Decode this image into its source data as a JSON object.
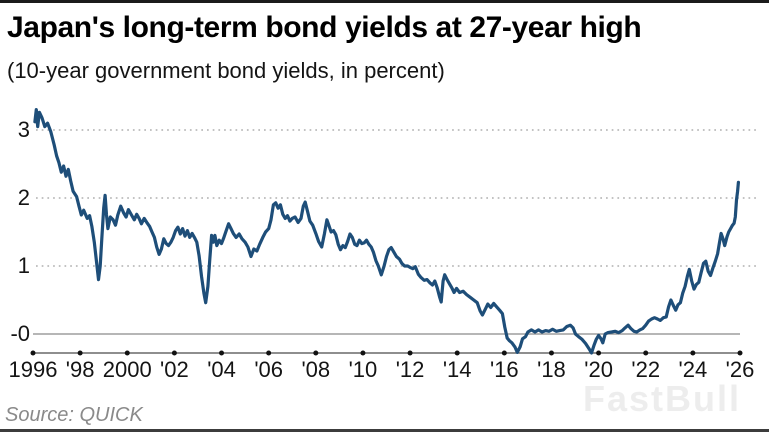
{
  "footer": {
    "source": "Source: QUICK",
    "watermark": "FastBull"
  },
  "chart_data": {
    "type": "line",
    "title": "Japan's long-term bond yields at 27-year high",
    "subtitle": "(10-year government bond yields, in percent)",
    "xlabel": "",
    "ylabel": "percent",
    "xlim": [
      1996,
      2026
    ],
    "ylim": [
      -0.35,
      3.45
    ],
    "grid": "horizontal dotted",
    "legend_position": "none",
    "colors": {
      "line": "#1e4e79",
      "grid": "#bbbbbb",
      "zero_line": "#8a8a8a",
      "axis": "#4a4a4a",
      "tick_dot": "#111111"
    },
    "y_ticks": [
      {
        "value": 3,
        "label": "3",
        "grid": true
      },
      {
        "value": 2,
        "label": "2",
        "grid": true
      },
      {
        "value": 1,
        "label": "1",
        "grid": true
      },
      {
        "value": 0,
        "label": "-0",
        "grid": false
      }
    ],
    "x_ticks": [
      {
        "year": 1996,
        "label": "1996"
      },
      {
        "year": 1998,
        "label": "'98"
      },
      {
        "year": 2000,
        "label": "2000"
      },
      {
        "year": 2002,
        "label": "'02"
      },
      {
        "year": 2004,
        "label": "'04"
      },
      {
        "year": 2006,
        "label": "'06"
      },
      {
        "year": 2008,
        "label": "'08"
      },
      {
        "year": 2010,
        "label": "'10"
      },
      {
        "year": 2012,
        "label": "'12"
      },
      {
        "year": 2014,
        "label": "'14"
      },
      {
        "year": 2016,
        "label": "'16"
      },
      {
        "year": 2018,
        "label": "'18"
      },
      {
        "year": 2020,
        "label": "'20"
      },
      {
        "year": 2022,
        "label": "'22"
      },
      {
        "year": 2024,
        "label": "'24"
      },
      {
        "year": 2026,
        "label": "'26"
      }
    ],
    "series": [
      {
        "name": "Japan 10-year government bond yield (%)",
        "points": [
          [
            1996.08,
            3.12
          ],
          [
            1996.14,
            3.3
          ],
          [
            1996.2,
            3.05
          ],
          [
            1996.27,
            3.26
          ],
          [
            1996.38,
            3.18
          ],
          [
            1996.5,
            3.05
          ],
          [
            1996.62,
            3.1
          ],
          [
            1996.75,
            2.98
          ],
          [
            1996.9,
            2.78
          ],
          [
            1997.0,
            2.62
          ],
          [
            1997.1,
            2.52
          ],
          [
            1997.2,
            2.38
          ],
          [
            1997.3,
            2.47
          ],
          [
            1997.4,
            2.32
          ],
          [
            1997.5,
            2.42
          ],
          [
            1997.6,
            2.25
          ],
          [
            1997.7,
            2.1
          ],
          [
            1997.85,
            2.02
          ],
          [
            1997.95,
            1.88
          ],
          [
            1998.05,
            1.75
          ],
          [
            1998.15,
            1.82
          ],
          [
            1998.3,
            1.7
          ],
          [
            1998.4,
            1.74
          ],
          [
            1998.5,
            1.58
          ],
          [
            1998.6,
            1.35
          ],
          [
            1998.7,
            1.05
          ],
          [
            1998.78,
            0.8
          ],
          [
            1998.85,
            1.0
          ],
          [
            1998.92,
            1.4
          ],
          [
            1999.0,
            1.85
          ],
          [
            1999.06,
            2.04
          ],
          [
            1999.12,
            1.75
          ],
          [
            1999.18,
            1.55
          ],
          [
            1999.28,
            1.72
          ],
          [
            1999.4,
            1.68
          ],
          [
            1999.5,
            1.6
          ],
          [
            1999.6,
            1.75
          ],
          [
            1999.72,
            1.88
          ],
          [
            1999.85,
            1.78
          ],
          [
            1999.95,
            1.72
          ],
          [
            2000.05,
            1.83
          ],
          [
            2000.18,
            1.75
          ],
          [
            2000.3,
            1.68
          ],
          [
            2000.4,
            1.76
          ],
          [
            2000.5,
            1.7
          ],
          [
            2000.6,
            1.62
          ],
          [
            2000.72,
            1.7
          ],
          [
            2000.85,
            1.63
          ],
          [
            2000.95,
            1.58
          ],
          [
            2001.05,
            1.5
          ],
          [
            2001.15,
            1.42
          ],
          [
            2001.25,
            1.28
          ],
          [
            2001.35,
            1.17
          ],
          [
            2001.45,
            1.25
          ],
          [
            2001.55,
            1.4
          ],
          [
            2001.65,
            1.33
          ],
          [
            2001.75,
            1.3
          ],
          [
            2001.85,
            1.35
          ],
          [
            2001.95,
            1.42
          ],
          [
            2002.05,
            1.52
          ],
          [
            2002.15,
            1.57
          ],
          [
            2002.25,
            1.47
          ],
          [
            2002.35,
            1.55
          ],
          [
            2002.45,
            1.44
          ],
          [
            2002.55,
            1.52
          ],
          [
            2002.65,
            1.42
          ],
          [
            2002.75,
            1.48
          ],
          [
            2002.85,
            1.42
          ],
          [
            2002.95,
            1.35
          ],
          [
            2003.05,
            1.15
          ],
          [
            2003.15,
            0.85
          ],
          [
            2003.25,
            0.6
          ],
          [
            2003.33,
            0.46
          ],
          [
            2003.42,
            0.7
          ],
          [
            2003.5,
            1.1
          ],
          [
            2003.58,
            1.45
          ],
          [
            2003.65,
            1.35
          ],
          [
            2003.72,
            1.45
          ],
          [
            2003.8,
            1.3
          ],
          [
            2003.9,
            1.38
          ],
          [
            2004.0,
            1.33
          ],
          [
            2004.1,
            1.42
          ],
          [
            2004.2,
            1.52
          ],
          [
            2004.3,
            1.62
          ],
          [
            2004.4,
            1.55
          ],
          [
            2004.5,
            1.48
          ],
          [
            2004.62,
            1.42
          ],
          [
            2004.75,
            1.47
          ],
          [
            2004.87,
            1.4
          ],
          [
            2005.0,
            1.35
          ],
          [
            2005.12,
            1.28
          ],
          [
            2005.25,
            1.14
          ],
          [
            2005.37,
            1.25
          ],
          [
            2005.5,
            1.22
          ],
          [
            2005.62,
            1.32
          ],
          [
            2005.75,
            1.42
          ],
          [
            2005.87,
            1.5
          ],
          [
            2006.0,
            1.55
          ],
          [
            2006.1,
            1.68
          ],
          [
            2006.2,
            1.9
          ],
          [
            2006.3,
            1.93
          ],
          [
            2006.4,
            1.85
          ],
          [
            2006.5,
            1.9
          ],
          [
            2006.6,
            1.76
          ],
          [
            2006.7,
            1.7
          ],
          [
            2006.8,
            1.74
          ],
          [
            2006.9,
            1.66
          ],
          [
            2007.0,
            1.7
          ],
          [
            2007.12,
            1.72
          ],
          [
            2007.25,
            1.64
          ],
          [
            2007.37,
            1.7
          ],
          [
            2007.47,
            1.88
          ],
          [
            2007.55,
            1.94
          ],
          [
            2007.65,
            1.8
          ],
          [
            2007.75,
            1.66
          ],
          [
            2007.87,
            1.6
          ],
          [
            2008.0,
            1.48
          ],
          [
            2008.12,
            1.36
          ],
          [
            2008.25,
            1.28
          ],
          [
            2008.37,
            1.48
          ],
          [
            2008.47,
            1.68
          ],
          [
            2008.55,
            1.6
          ],
          [
            2008.65,
            1.5
          ],
          [
            2008.75,
            1.52
          ],
          [
            2008.85,
            1.46
          ],
          [
            2008.95,
            1.32
          ],
          [
            2009.05,
            1.24
          ],
          [
            2009.15,
            1.3
          ],
          [
            2009.25,
            1.27
          ],
          [
            2009.35,
            1.36
          ],
          [
            2009.45,
            1.47
          ],
          [
            2009.55,
            1.42
          ],
          [
            2009.65,
            1.32
          ],
          [
            2009.75,
            1.3
          ],
          [
            2009.85,
            1.38
          ],
          [
            2009.95,
            1.33
          ],
          [
            2010.05,
            1.34
          ],
          [
            2010.15,
            1.38
          ],
          [
            2010.25,
            1.32
          ],
          [
            2010.35,
            1.28
          ],
          [
            2010.45,
            1.2
          ],
          [
            2010.55,
            1.08
          ],
          [
            2010.65,
            1.0
          ],
          [
            2010.78,
            0.87
          ],
          [
            2010.9,
            1.0
          ],
          [
            2011.0,
            1.14
          ],
          [
            2011.1,
            1.24
          ],
          [
            2011.2,
            1.27
          ],
          [
            2011.3,
            1.21
          ],
          [
            2011.42,
            1.14
          ],
          [
            2011.55,
            1.1
          ],
          [
            2011.65,
            1.04
          ],
          [
            2011.77,
            1.0
          ],
          [
            2011.9,
            1.0
          ],
          [
            2012.0,
            0.98
          ],
          [
            2012.12,
            0.96
          ],
          [
            2012.22,
            0.99
          ],
          [
            2012.35,
            0.88
          ],
          [
            2012.47,
            0.83
          ],
          [
            2012.6,
            0.79
          ],
          [
            2012.72,
            0.8
          ],
          [
            2012.85,
            0.75
          ],
          [
            2012.95,
            0.72
          ],
          [
            2013.05,
            0.78
          ],
          [
            2013.15,
            0.68
          ],
          [
            2013.25,
            0.55
          ],
          [
            2013.32,
            0.47
          ],
          [
            2013.4,
            0.78
          ],
          [
            2013.47,
            0.87
          ],
          [
            2013.57,
            0.8
          ],
          [
            2013.67,
            0.74
          ],
          [
            2013.77,
            0.68
          ],
          [
            2013.87,
            0.61
          ],
          [
            2013.97,
            0.67
          ],
          [
            2014.1,
            0.61
          ],
          [
            2014.25,
            0.63
          ],
          [
            2014.4,
            0.58
          ],
          [
            2014.55,
            0.54
          ],
          [
            2014.7,
            0.5
          ],
          [
            2014.85,
            0.46
          ],
          [
            2014.97,
            0.34
          ],
          [
            2015.07,
            0.28
          ],
          [
            2015.2,
            0.37
          ],
          [
            2015.3,
            0.44
          ],
          [
            2015.42,
            0.39
          ],
          [
            2015.55,
            0.45
          ],
          [
            2015.67,
            0.4
          ],
          [
            2015.8,
            0.35
          ],
          [
            2015.92,
            0.3
          ],
          [
            2016.02,
            0.1
          ],
          [
            2016.12,
            -0.06
          ],
          [
            2016.22,
            -0.1
          ],
          [
            2016.32,
            -0.13
          ],
          [
            2016.45,
            -0.19
          ],
          [
            2016.55,
            -0.27
          ],
          [
            2016.67,
            -0.19
          ],
          [
            2016.77,
            -0.07
          ],
          [
            2016.9,
            -0.04
          ],
          [
            2017.0,
            0.03
          ],
          [
            2017.15,
            0.06
          ],
          [
            2017.3,
            0.03
          ],
          [
            2017.45,
            0.06
          ],
          [
            2017.6,
            0.03
          ],
          [
            2017.75,
            0.05
          ],
          [
            2017.9,
            0.04
          ],
          [
            2018.05,
            0.07
          ],
          [
            2018.2,
            0.04
          ],
          [
            2018.35,
            0.05
          ],
          [
            2018.5,
            0.06
          ],
          [
            2018.65,
            0.11
          ],
          [
            2018.8,
            0.13
          ],
          [
            2018.92,
            0.09
          ],
          [
            2019.02,
            0.0
          ],
          [
            2019.15,
            -0.04
          ],
          [
            2019.3,
            -0.08
          ],
          [
            2019.45,
            -0.14
          ],
          [
            2019.6,
            -0.22
          ],
          [
            2019.7,
            -0.28
          ],
          [
            2019.8,
            -0.17
          ],
          [
            2019.9,
            -0.08
          ],
          [
            2020.0,
            -0.02
          ],
          [
            2020.1,
            -0.07
          ],
          [
            2020.18,
            -0.13
          ],
          [
            2020.28,
            0.0
          ],
          [
            2020.4,
            0.02
          ],
          [
            2020.55,
            0.03
          ],
          [
            2020.7,
            0.04
          ],
          [
            2020.85,
            0.02
          ],
          [
            2021.0,
            0.05
          ],
          [
            2021.12,
            0.09
          ],
          [
            2021.25,
            0.13
          ],
          [
            2021.37,
            0.08
          ],
          [
            2021.5,
            0.04
          ],
          [
            2021.62,
            0.03
          ],
          [
            2021.75,
            0.06
          ],
          [
            2021.87,
            0.08
          ],
          [
            2022.0,
            0.13
          ],
          [
            2022.12,
            0.19
          ],
          [
            2022.25,
            0.22
          ],
          [
            2022.37,
            0.24
          ],
          [
            2022.5,
            0.22
          ],
          [
            2022.62,
            0.2
          ],
          [
            2022.75,
            0.24
          ],
          [
            2022.87,
            0.25
          ],
          [
            2022.97,
            0.4
          ],
          [
            2023.07,
            0.5
          ],
          [
            2023.17,
            0.42
          ],
          [
            2023.27,
            0.35
          ],
          [
            2023.37,
            0.43
          ],
          [
            2023.47,
            0.46
          ],
          [
            2023.57,
            0.6
          ],
          [
            2023.67,
            0.7
          ],
          [
            2023.77,
            0.85
          ],
          [
            2023.85,
            0.95
          ],
          [
            2023.95,
            0.78
          ],
          [
            2024.05,
            0.66
          ],
          [
            2024.15,
            0.73
          ],
          [
            2024.25,
            0.76
          ],
          [
            2024.35,
            0.9
          ],
          [
            2024.45,
            1.04
          ],
          [
            2024.55,
            1.07
          ],
          [
            2024.65,
            0.92
          ],
          [
            2024.75,
            0.86
          ],
          [
            2024.85,
            0.97
          ],
          [
            2024.95,
            1.07
          ],
          [
            2025.05,
            1.18
          ],
          [
            2025.12,
            1.33
          ],
          [
            2025.2,
            1.48
          ],
          [
            2025.28,
            1.4
          ],
          [
            2025.35,
            1.3
          ],
          [
            2025.45,
            1.43
          ],
          [
            2025.52,
            1.5
          ],
          [
            2025.6,
            1.55
          ],
          [
            2025.68,
            1.6
          ],
          [
            2025.75,
            1.63
          ],
          [
            2025.8,
            1.72
          ],
          [
            2025.85,
            1.97
          ],
          [
            2025.9,
            2.1
          ],
          [
            2025.93,
            2.23
          ]
        ]
      }
    ]
  }
}
